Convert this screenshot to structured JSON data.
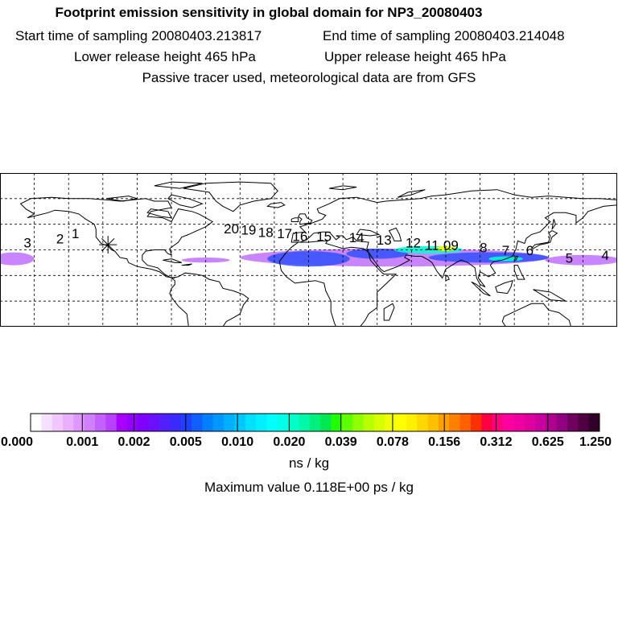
{
  "header": {
    "title": "Footprint emission sensitivity in global domain for NP3_20080403",
    "start_label": "Start time of sampling 20080403.213817",
    "end_label": "End time of sampling 20080403.214048",
    "lower_label": "Lower release height  465 hPa",
    "upper_label": "Upper release height  465 hPa",
    "tracer_note": "Passive tracer used, meteorological data are from GFS"
  },
  "map": {
    "projection": "equirectangular",
    "lon_range": [
      -180,
      180
    ],
    "lat_range": [
      -30,
      90
    ],
    "grid_lon_step": 20,
    "grid_lat_step": 20,
    "release_site_marker": "asterisk",
    "release_site": {
      "lon": -117,
      "lat": 34
    },
    "trajectory_labels": [
      {
        "label": "1",
        "lon": -136,
        "lat": 39
      },
      {
        "label": "2",
        "lon": -145,
        "lat": 35
      },
      {
        "label": "3",
        "lon": -164,
        "lat": 32
      },
      {
        "label": "20",
        "lon": -45,
        "lat": 43
      },
      {
        "label": "19",
        "lon": -35,
        "lat": 42
      },
      {
        "label": "18",
        "lon": -25,
        "lat": 40
      },
      {
        "label": "17",
        "lon": -14,
        "lat": 39
      },
      {
        "label": "16",
        "lon": -5,
        "lat": 37
      },
      {
        "label": "15",
        "lon": 9,
        "lat": 37
      },
      {
        "label": "14",
        "lon": 28,
        "lat": 36
      },
      {
        "label": "13",
        "lon": 44,
        "lat": 34
      },
      {
        "label": "12",
        "lon": 61,
        "lat": 32
      },
      {
        "label": "11",
        "lon": 72,
        "lat": 30
      },
      {
        "label": "09",
        "lon": 83,
        "lat": 30
      },
      {
        "label": "8",
        "lon": 102,
        "lat": 28
      },
      {
        "label": "7",
        "lon": 115,
        "lat": 26
      },
      {
        "label": "6",
        "lon": 129,
        "lat": 26
      },
      {
        "label": "5",
        "lon": 152,
        "lat": 20
      },
      {
        "label": "4",
        "lon": 173,
        "lat": 22
      }
    ],
    "colors": {
      "coast": "#000000",
      "grid": "#000000",
      "plume_low": "#c070ff",
      "plume_mid": "#3050ff",
      "plume_high": "#00ffd0",
      "plume_peak": "#ffff00"
    }
  },
  "colorbar": {
    "tick_labels": [
      "0.000",
      "0.001",
      "0.002",
      "0.005",
      "0.010",
      "0.020",
      "0.039",
      "0.078",
      "0.156",
      "0.312",
      "0.625",
      "1.250"
    ],
    "colors": [
      "#ffffff",
      "#f6e0ff",
      "#f0c8ff",
      "#e8b0ff",
      "#df98ff",
      "#d080ff",
      "#c460ff",
      "#b840ff",
      "#a800ff",
      "#9400ff",
      "#8000ff",
      "#6a10ff",
      "#5020ff",
      "#3a2aff",
      "#2040ff",
      "#1060ff",
      "#0080ff",
      "#0098ff",
      "#00b0ff",
      "#00c8ff",
      "#00e0ff",
      "#00f0ff",
      "#00ffff",
      "#00ffe8",
      "#00ffc8",
      "#00f8a8",
      "#00f080",
      "#00e850",
      "#20ff00",
      "#60ff00",
      "#90ff00",
      "#b8ff00",
      "#d8ff00",
      "#f0ff00",
      "#ffff00",
      "#fff000",
      "#ffd800",
      "#ffc000",
      "#ffa000",
      "#ff8000",
      "#ff6000",
      "#ff3000",
      "#ff0040",
      "#ff0080",
      "#ff00a0",
      "#f000a0",
      "#e000a0",
      "#c800a0",
      "#b00090",
      "#900080",
      "#700060",
      "#500040",
      "#300028"
    ]
  },
  "unit_label": "ns / kg",
  "max_value_label": "Maximum value  0.118E+00 ps / kg"
}
